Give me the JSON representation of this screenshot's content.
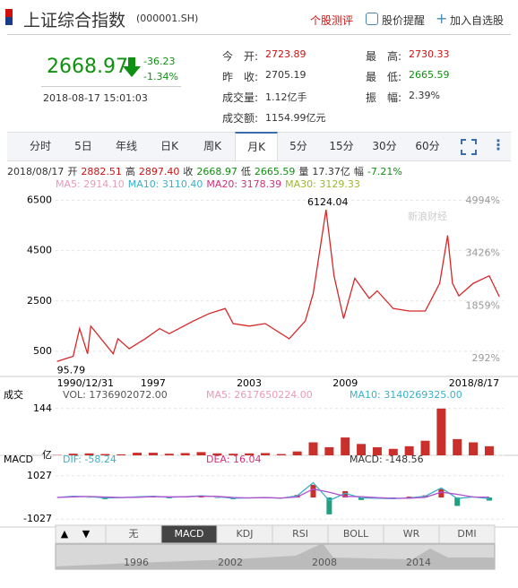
{
  "header": {
    "title": "上证综合指数",
    "code": "(000001.SH)",
    "links": [
      "个股测评",
      "股价提醒",
      "加入自选股"
    ]
  },
  "quote": {
    "price": "2668.97",
    "change": "-36.23",
    "pct": "-1.34%",
    "time": "2018-08-17 15:01:03"
  },
  "stats": [
    {
      "label": "今　开:",
      "value": "2723.89",
      "color": "#d01010"
    },
    {
      "label": "昨　收:",
      "value": "2705.19",
      "color": "#333333"
    },
    {
      "label": "成交量:",
      "value": "1.12亿手",
      "color": "#333333"
    },
    {
      "label": "成交额:",
      "value": "1154.99亿元",
      "color": "#333333"
    },
    {
      "label": "最　高:",
      "value": "2730.33",
      "color": "#d01010"
    },
    {
      "label": "最　低:",
      "value": "2665.59",
      "color": "#109010"
    },
    {
      "label": "振　幅:",
      "value": "2.39%",
      "color": "#333333"
    }
  ],
  "tabs": [
    "分时",
    "5日",
    "年线",
    "日K",
    "周K",
    "月K",
    "5分",
    "15分",
    "30分",
    "60分"
  ],
  "active_tab": 5,
  "summary": {
    "date": "2018/08/17",
    "items": [
      {
        "label": "开",
        "value": "2882.51",
        "color": "#d01010"
      },
      {
        "label": "高",
        "value": "2897.40",
        "color": "#d01010"
      },
      {
        "label": "收",
        "value": "2668.97",
        "color": "#109010"
      },
      {
        "label": "低",
        "value": "2665.59",
        "color": "#109010"
      },
      {
        "label": "量",
        "value": "17.37亿",
        "color": "#333333"
      },
      {
        "label": "幅",
        "value": "-7.21%",
        "color": "#109010"
      }
    ]
  },
  "ma_legend": [
    {
      "text": "MA5: 2914.10",
      "color": "#e89ab8"
    },
    {
      "text": "MA10: 3110.40",
      "color": "#3ab0c8"
    },
    {
      "text": "MA20: 3178.39",
      "color": "#d0307a"
    },
    {
      "text": "MA30: 3129.33",
      "color": "#9cb830"
    }
  ],
  "watermark": "新浪财经",
  "chart_data": [
    {
      "type": "line",
      "color": "#d62728",
      "x": [
        1990.99,
        1992,
        1992.4,
        1992.9,
        1993.1,
        1994.5,
        1994.8,
        1995.5,
        1996.5,
        1997.4,
        1998,
        1999.5,
        2000.5,
        2001.5,
        2002,
        2003,
        2004,
        2005.5,
        2006.5,
        2007,
        2007.8,
        2008.3,
        2008.9,
        2009.6,
        2010.5,
        2011,
        2012,
        2013,
        2014,
        2014.9,
        2015.4,
        2015.7,
        2016.1,
        2017,
        2018,
        2018.63
      ],
      "values": [
        95.79,
        300,
        1400,
        400,
        1500,
        400,
        1000,
        600,
        1000,
        1400,
        1200,
        1700,
        2000,
        2200,
        1600,
        1500,
        1600,
        1000,
        1700,
        2800,
        6124.04,
        3500,
        1800,
        3400,
        2600,
        2900,
        2200,
        2100,
        2100,
        3200,
        5100,
        3200,
        2700,
        3200,
        3500,
        2668.97
      ],
      "xlim": [
        1990.9,
        2018.9
      ],
      "ylim": [
        -500,
        6800
      ],
      "yticks": [
        500,
        2500,
        4500,
        6500
      ],
      "xticks": [
        {
          "value": 1990.99,
          "label": "1990/12/31"
        },
        {
          "value": 1997,
          "label": "1997"
        },
        {
          "value": 2003,
          "label": "2003"
        },
        {
          "value": 2009,
          "label": "2009"
        },
        {
          "value": 2018.63,
          "label": "2018/8/17"
        }
      ],
      "y2lim": [
        -242,
        5234
      ],
      "y2ticks": [
        {
          "value": 4994,
          "label": "4994%"
        },
        {
          "value": 3426,
          "label": "3426%"
        },
        {
          "value": 1859,
          "label": "1859%"
        },
        {
          "value": 292,
          "label": "292%"
        }
      ],
      "annotations": [
        {
          "x": 2007.8,
          "value": 6124.04,
          "label": "6124.04"
        },
        {
          "x": 1990.99,
          "value": 95.79,
          "label": "95.79"
        }
      ],
      "grid": true
    },
    {
      "type": "bar",
      "title": "成交",
      "legend": [
        {
          "text": "VOL: 1736902072.00",
          "color": "#555555"
        },
        {
          "text": "MA5: 2617650224.00",
          "color": "#e89ab8"
        },
        {
          "text": "MA10: 3140269325.00",
          "color": "#3ab0c8"
        }
      ],
      "color": "#c9302c",
      "x": [
        1991,
        1992,
        1993,
        1994,
        1995,
        1996,
        1997,
        1998,
        1999,
        2000,
        2001,
        2002,
        2003,
        2004,
        2005,
        2006,
        2007,
        2008,
        2009,
        2010,
        2011,
        2012,
        2013,
        2014,
        2015,
        2016,
        2017,
        2018
      ],
      "values": [
        1,
        5,
        6,
        4,
        3,
        8,
        8,
        5,
        7,
        10,
        6,
        5,
        6,
        7,
        4,
        12,
        40,
        25,
        55,
        35,
        25,
        20,
        28,
        45,
        144,
        50,
        40,
        28
      ],
      "xlim": [
        1990.9,
        2018.9
      ],
      "ylim": [
        0,
        160
      ],
      "yticks": [
        {
          "value": 144,
          "label": "144"
        },
        {
          "value": 0,
          "label": "亿"
        }
      ]
    },
    {
      "type": "line",
      "title": "MACD",
      "legend": [
        {
          "text": "DIF: -58.24",
          "color": "#3ab0c8"
        },
        {
          "text": "DEA: 16.04",
          "color": "#d0307a"
        },
        {
          "text": "MACD: -148.56",
          "color": "#333333"
        }
      ],
      "x": [
        1991,
        1992,
        1993,
        1994,
        1995,
        1996,
        1997,
        1998,
        1999,
        2000,
        2001,
        2002,
        2003,
        2004,
        2005,
        2006,
        2007,
        2008,
        2009,
        2010,
        2011,
        2012,
        2013,
        2014,
        2015,
        2016,
        2017,
        2018
      ],
      "series": [
        {
          "color": "#3ab0c8",
          "values": [
            0,
            60,
            40,
            -20,
            -10,
            30,
            60,
            10,
            40,
            80,
            40,
            -40,
            -20,
            0,
            -40,
            80,
            700,
            -150,
            200,
            -20,
            -40,
            -60,
            -20,
            60,
            450,
            -50,
            30,
            -58.24
          ]
        },
        {
          "color": "#b050d0",
          "values": [
            0,
            30,
            45,
            20,
            0,
            10,
            40,
            30,
            30,
            60,
            50,
            0,
            -20,
            -10,
            -25,
            20,
            400,
            250,
            50,
            40,
            -10,
            -40,
            -40,
            10,
            250,
            150,
            20,
            16.04
          ]
        }
      ],
      "histogram": [
        0,
        60,
        -10,
        -80,
        -20,
        40,
        40,
        -40,
        20,
        40,
        -20,
        -80,
        0,
        20,
        -30,
        120,
        600,
        -800,
        300,
        -120,
        -60,
        -40,
        40,
        100,
        400,
        -400,
        20,
        -148.56
      ],
      "up_color": "#c9302c",
      "down_color": "#20a080",
      "xlim": [
        1990.9,
        2018.9
      ],
      "ylim": [
        -1400,
        1400
      ],
      "yticks": [
        1027,
        -1027
      ]
    }
  ],
  "indicator_tabs": [
    "无",
    "MACD",
    "KDJ",
    "RSI",
    "BOLL",
    "WR",
    "DMI"
  ],
  "active_indicator": 1,
  "navigator": {
    "labels": [
      "1996",
      "2002",
      "2008",
      "2014"
    ]
  }
}
